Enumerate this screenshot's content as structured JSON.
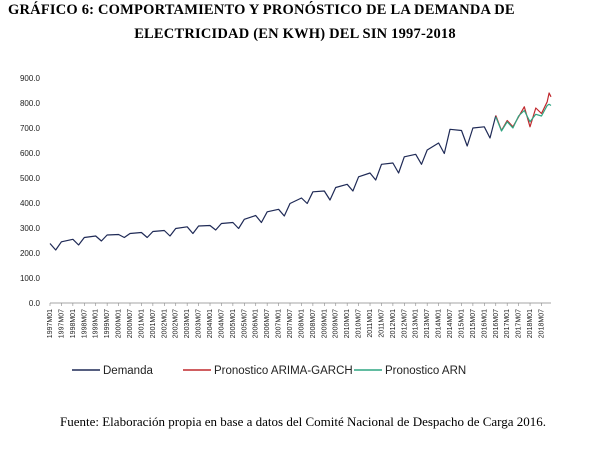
{
  "title_line1": "GRÁFICO 6: COMPORTAMIENTO Y PRONÓSTICO DE LA DEMANDA DE",
  "title_line2": "ELECTRICIDAD (EN KWH) DEL SIN 1997-2018",
  "source_note": "Fuente: Elaboración propia en base a datos del Comité Nacional de Despacho de Carga 2016.",
  "chart_data": {
    "type": "line",
    "title": "",
    "xlabel": "",
    "ylabel": "",
    "ylim": [
      0,
      900
    ],
    "yticks": [
      "0.0",
      "100.0",
      "200.0",
      "300.0",
      "400.0",
      "500.0",
      "600.0",
      "700.0",
      "800.0",
      "900.0"
    ],
    "x_start": "1997M01",
    "x_end": "2018M12",
    "x_tick_labels": [
      "1997M01",
      "1997M07",
      "1998M01",
      "1998M07",
      "1999M01",
      "1999M07",
      "2000M01",
      "2000M07",
      "2001M01",
      "2001M07",
      "2002M01",
      "2002M07",
      "2003M01",
      "2003M07",
      "2004M01",
      "2004M07",
      "2005M01",
      "2005M07",
      "2006M01",
      "2006M07",
      "2007M01",
      "2007M07",
      "2008M01",
      "2008M07",
      "2009M01",
      "2009M07",
      "2010M01",
      "2010M07",
      "2011M01",
      "2011M07",
      "2012M01",
      "2012M07",
      "2013M01",
      "2013M07",
      "2014M01",
      "2014M07",
      "2015M01",
      "2015M07",
      "2016M01",
      "2016M07",
      "2017M01",
      "2017M07",
      "2018M01",
      "2018M07"
    ],
    "legend_position": "bottom",
    "grid": false,
    "series": [
      {
        "name": "Demanda",
        "color": "#1f2a56",
        "points": [
          [
            "1997M01",
            238
          ],
          [
            "1997M04",
            212
          ],
          [
            "1997M07",
            245
          ],
          [
            "1998M01",
            255
          ],
          [
            "1998M04",
            232
          ],
          [
            "1998M07",
            262
          ],
          [
            "1999M01",
            268
          ],
          [
            "1999M04",
            248
          ],
          [
            "1999M07",
            272
          ],
          [
            "2000M01",
            274
          ],
          [
            "2000M04",
            262
          ],
          [
            "2000M07",
            278
          ],
          [
            "2001M01",
            282
          ],
          [
            "2001M04",
            262
          ],
          [
            "2001M07",
            286
          ],
          [
            "2002M01",
            290
          ],
          [
            "2002M04",
            268
          ],
          [
            "2002M07",
            298
          ],
          [
            "2003M01",
            305
          ],
          [
            "2003M04",
            278
          ],
          [
            "2003M07",
            308
          ],
          [
            "2004M01",
            310
          ],
          [
            "2004M04",
            292
          ],
          [
            "2004M07",
            318
          ],
          [
            "2005M01",
            322
          ],
          [
            "2005M04",
            298
          ],
          [
            "2005M07",
            335
          ],
          [
            "2006M01",
            350
          ],
          [
            "2006M04",
            322
          ],
          [
            "2006M07",
            365
          ],
          [
            "2007M01",
            375
          ],
          [
            "2007M04",
            348
          ],
          [
            "2007M07",
            398
          ],
          [
            "2008M01",
            420
          ],
          [
            "2008M04",
            398
          ],
          [
            "2008M07",
            445
          ],
          [
            "2009M01",
            448
          ],
          [
            "2009M04",
            412
          ],
          [
            "2009M07",
            462
          ],
          [
            "2010M01",
            475
          ],
          [
            "2010M04",
            448
          ],
          [
            "2010M07",
            505
          ],
          [
            "2011M01",
            520
          ],
          [
            "2011M04",
            492
          ],
          [
            "2011M07",
            555
          ],
          [
            "2012M01",
            560
          ],
          [
            "2012M04",
            520
          ],
          [
            "2012M07",
            585
          ],
          [
            "2013M01",
            595
          ],
          [
            "2013M04",
            555
          ],
          [
            "2013M07",
            612
          ],
          [
            "2014M01",
            640
          ],
          [
            "2014M04",
            598
          ],
          [
            "2014M07",
            695
          ],
          [
            "2015M01",
            690
          ],
          [
            "2015M04",
            628
          ],
          [
            "2015M07",
            700
          ],
          [
            "2016M01",
            705
          ],
          [
            "2016M04",
            660
          ],
          [
            "2016M07",
            750
          ]
        ]
      },
      {
        "name": "Pronostico ARIMA-GARCH",
        "color": "#c0282d",
        "points": [
          [
            "2016M07",
            750
          ],
          [
            "2016M10",
            690
          ],
          [
            "2017M01",
            730
          ],
          [
            "2017M04",
            705
          ],
          [
            "2017M07",
            745
          ],
          [
            "2017M10",
            785
          ],
          [
            "2018M01",
            705
          ],
          [
            "2018M04",
            780
          ],
          [
            "2018M07",
            758
          ],
          [
            "2018M10",
            805
          ],
          [
            "2018M11",
            840
          ],
          [
            "2018M12",
            825
          ]
        ]
      },
      {
        "name": "Pronostico ARN",
        "color": "#2ea682",
        "points": [
          [
            "2016M07",
            745
          ],
          [
            "2016M10",
            688
          ],
          [
            "2017M01",
            725
          ],
          [
            "2017M04",
            700
          ],
          [
            "2017M07",
            748
          ],
          [
            "2017M10",
            770
          ],
          [
            "2018M01",
            725
          ],
          [
            "2018M04",
            755
          ],
          [
            "2018M07",
            748
          ],
          [
            "2018M10",
            790
          ],
          [
            "2018M11",
            795
          ],
          [
            "2018M12",
            790
          ]
        ]
      }
    ]
  }
}
